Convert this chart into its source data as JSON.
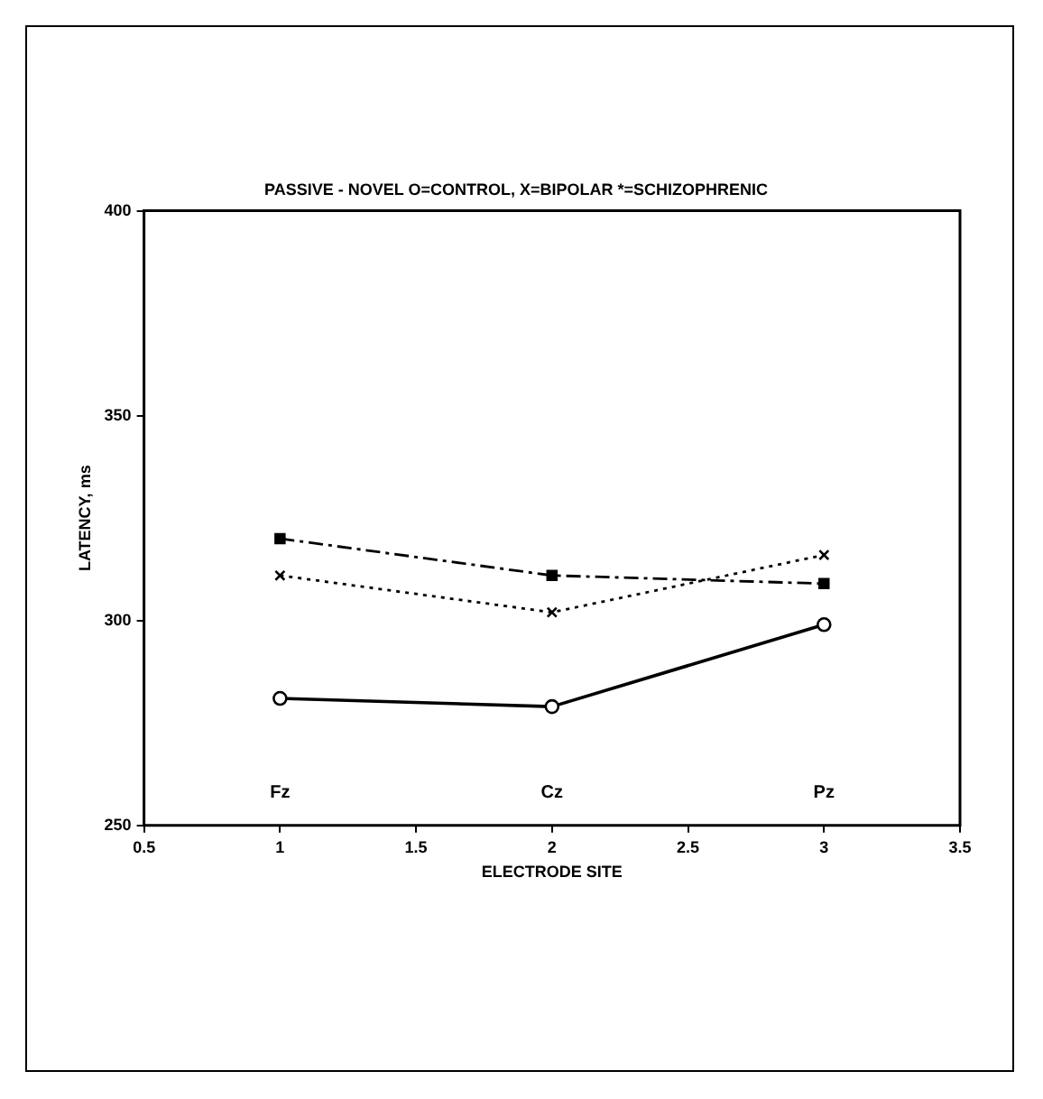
{
  "chart_data": {
    "type": "line",
    "title": "PASSIVE - NOVEL O=CONTROL, X=BIPOLAR *=SCHIZOPHRENIC",
    "xlabel": "ELECTRODE SITE",
    "ylabel": "LATENCY, ms",
    "x": [
      1,
      2,
      3
    ],
    "series": [
      {
        "color": "#000000",
        "values": [
          281,
          279,
          299
        ],
        "marker": "circle",
        "line_style": "solid"
      },
      {
        "color": "#000000",
        "values": [
          311,
          302,
          316
        ],
        "marker": "cross",
        "line_style": "dotted"
      },
      {
        "color": "#000000",
        "values": [
          320,
          311,
          309
        ],
        "marker": "square",
        "line_style": "dashed"
      }
    ],
    "xlim": [
      0.5,
      3.5
    ],
    "xticks": [
      0.5,
      1,
      1.5,
      2,
      2.5,
      3,
      3.5
    ],
    "ylim": [
      250,
      400
    ],
    "yticks": [
      250,
      300,
      350,
      400
    ],
    "annotations": [
      "Fz",
      "Cz",
      "Pz"
    ],
    "grid": false,
    "legend": false
  }
}
